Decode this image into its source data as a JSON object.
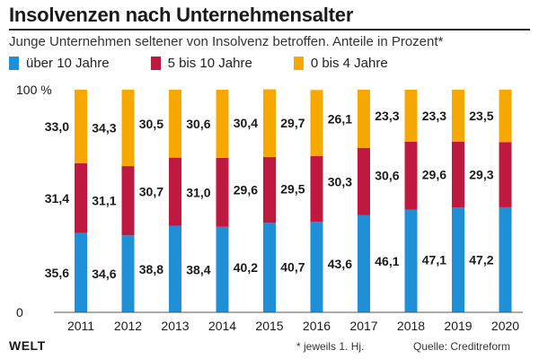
{
  "header": {
    "title": "Insolvenzen nach Unternehmensalter",
    "subtitle": "Junge Unternehmen seltener von Insolvenz betroffen. Anteile in Prozent*"
  },
  "footer": {
    "logo": "WELT",
    "note": "* jeweils 1. Hj.",
    "source": "Quelle: Creditreform"
  },
  "colors": {
    "blue": "#1f8fd8",
    "red": "#c0193f",
    "orange": "#f6a800"
  },
  "chart_data": {
    "type": "bar",
    "stacked": true,
    "categories": [
      "2011",
      "2012",
      "2013",
      "2014",
      "2015",
      "2016",
      "2017",
      "2018",
      "2019",
      "2020"
    ],
    "series": [
      {
        "name": "über 10 Jahre",
        "color": "#1f8fd8",
        "values": [
          35.6,
          34.6,
          38.8,
          38.4,
          40.2,
          40.7,
          43.6,
          46.1,
          47.1,
          47.2
        ],
        "labels": [
          "35,6",
          "34,6",
          "38,8",
          "38,4",
          "40,2",
          "40,7",
          "43,6",
          "46,1",
          "47,1",
          "47,2"
        ]
      },
      {
        "name": "5 bis 10 Jahre",
        "color": "#c0193f",
        "values": [
          31.4,
          31.1,
          30.7,
          31.0,
          29.6,
          29.5,
          30.3,
          30.6,
          29.6,
          29.3
        ],
        "labels": [
          "31,4",
          "31,1",
          "30,7",
          "31,0",
          "29,6",
          "29,5",
          "30,3",
          "30,6",
          "29,6",
          "29,3"
        ]
      },
      {
        "name": "0 bis 4 Jahre",
        "color": "#f6a800",
        "values": [
          33.0,
          34.3,
          30.5,
          30.6,
          30.4,
          29.7,
          26.1,
          23.3,
          23.3,
          23.5
        ],
        "labels": [
          "33,0",
          "34,3",
          "30,5",
          "30,6",
          "30,4",
          "29,7",
          "26,1",
          "23,3",
          "23,3",
          "23,5"
        ]
      }
    ],
    "ylim": [
      0,
      100
    ],
    "y_ticks": [
      "0",
      "100 %"
    ],
    "grid": false,
    "legend_position": "top-left"
  }
}
